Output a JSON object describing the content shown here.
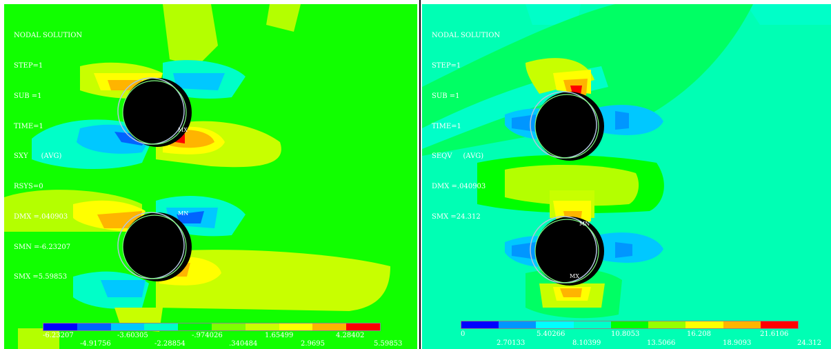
{
  "left": {
    "info": [
      "NODAL SOLUTION",
      "STEP=1",
      "SUB =1",
      "TIME=1",
      "SXY      (AVG)",
      "RSYS=0",
      "DMX =.040903",
      "SMN =-6.23207",
      "SMX =5.59853"
    ],
    "legend_top": [
      "-6.23207",
      "-3.60305",
      "-.974026",
      "1.65499",
      "4.28402"
    ],
    "legend_bottom": [
      "-4.91756",
      "-2.28854",
      ".340484",
      "2.9695",
      "5.59853"
    ],
    "markers": {
      "mx": "MX",
      "mn": "MN"
    }
  },
  "right": {
    "info": [
      "NODAL SOLUTION",
      "STEP=1",
      "SUB =1",
      "TIME=1",
      "SEQV     (AVG)",
      "DMX =.040903",
      "SMX =24.312"
    ],
    "legend_top": [
      "0",
      "5.40266",
      "10.8053",
      "16.208",
      "21.6106"
    ],
    "legend_bottom": [
      "2.70133",
      "8.10399",
      "13.5066",
      "18.9093",
      "24.312"
    ],
    "markers": {
      "mn": "MN",
      "mx": "MX"
    }
  },
  "colors": {
    "contour_bands": [
      "#0000ff",
      "#0064ff",
      "#00c8ff",
      "#00ffc8",
      "#00ff00",
      "#7dff00",
      "#c8ff00",
      "#ffff00",
      "#ffb400",
      "#ff0000"
    ],
    "left_background": "#11ff00",
    "right_background": "#00ffb4",
    "hole": "#000000"
  }
}
